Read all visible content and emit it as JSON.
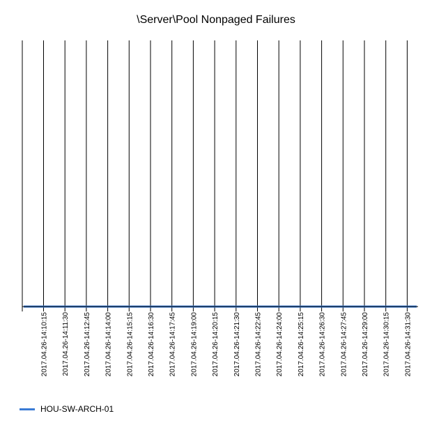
{
  "chart_data": {
    "type": "line",
    "title": "\\Server\\Pool Nonpaged Failures",
    "xlabel": "",
    "ylabel": "",
    "categories": [
      "2017.04.26-14:10:15",
      "2017.04.26-14:11:30",
      "2017.04.26-14:12:45",
      "2017.04.26-14:14:00",
      "2017.04.26-14:15:15",
      "2017.04.26-14:16:30",
      "2017.04.26-14:17:45",
      "2017.04.26-14:19:00",
      "2017.04.26-14:20:15",
      "2017.04.26-14:21:30",
      "2017.04.26-14:22:45",
      "2017.04.26-14:24:00",
      "2017.04.26-14:25:15",
      "2017.04.26-14:26:30",
      "2017.04.26-14:27:45",
      "2017.04.26-14:29:00",
      "2017.04.26-14:30:15",
      "2017.04.26-14:31:30"
    ],
    "series": [
      {
        "name": "HOU-SW-ARCH-01",
        "color": "#3a7bd5",
        "values": [
          0,
          0,
          0,
          0,
          0,
          0,
          0,
          0,
          0,
          0,
          0,
          0,
          0,
          0,
          0,
          0,
          0,
          0
        ]
      }
    ],
    "grid": "vertical",
    "legend_position": "bottom-left"
  }
}
